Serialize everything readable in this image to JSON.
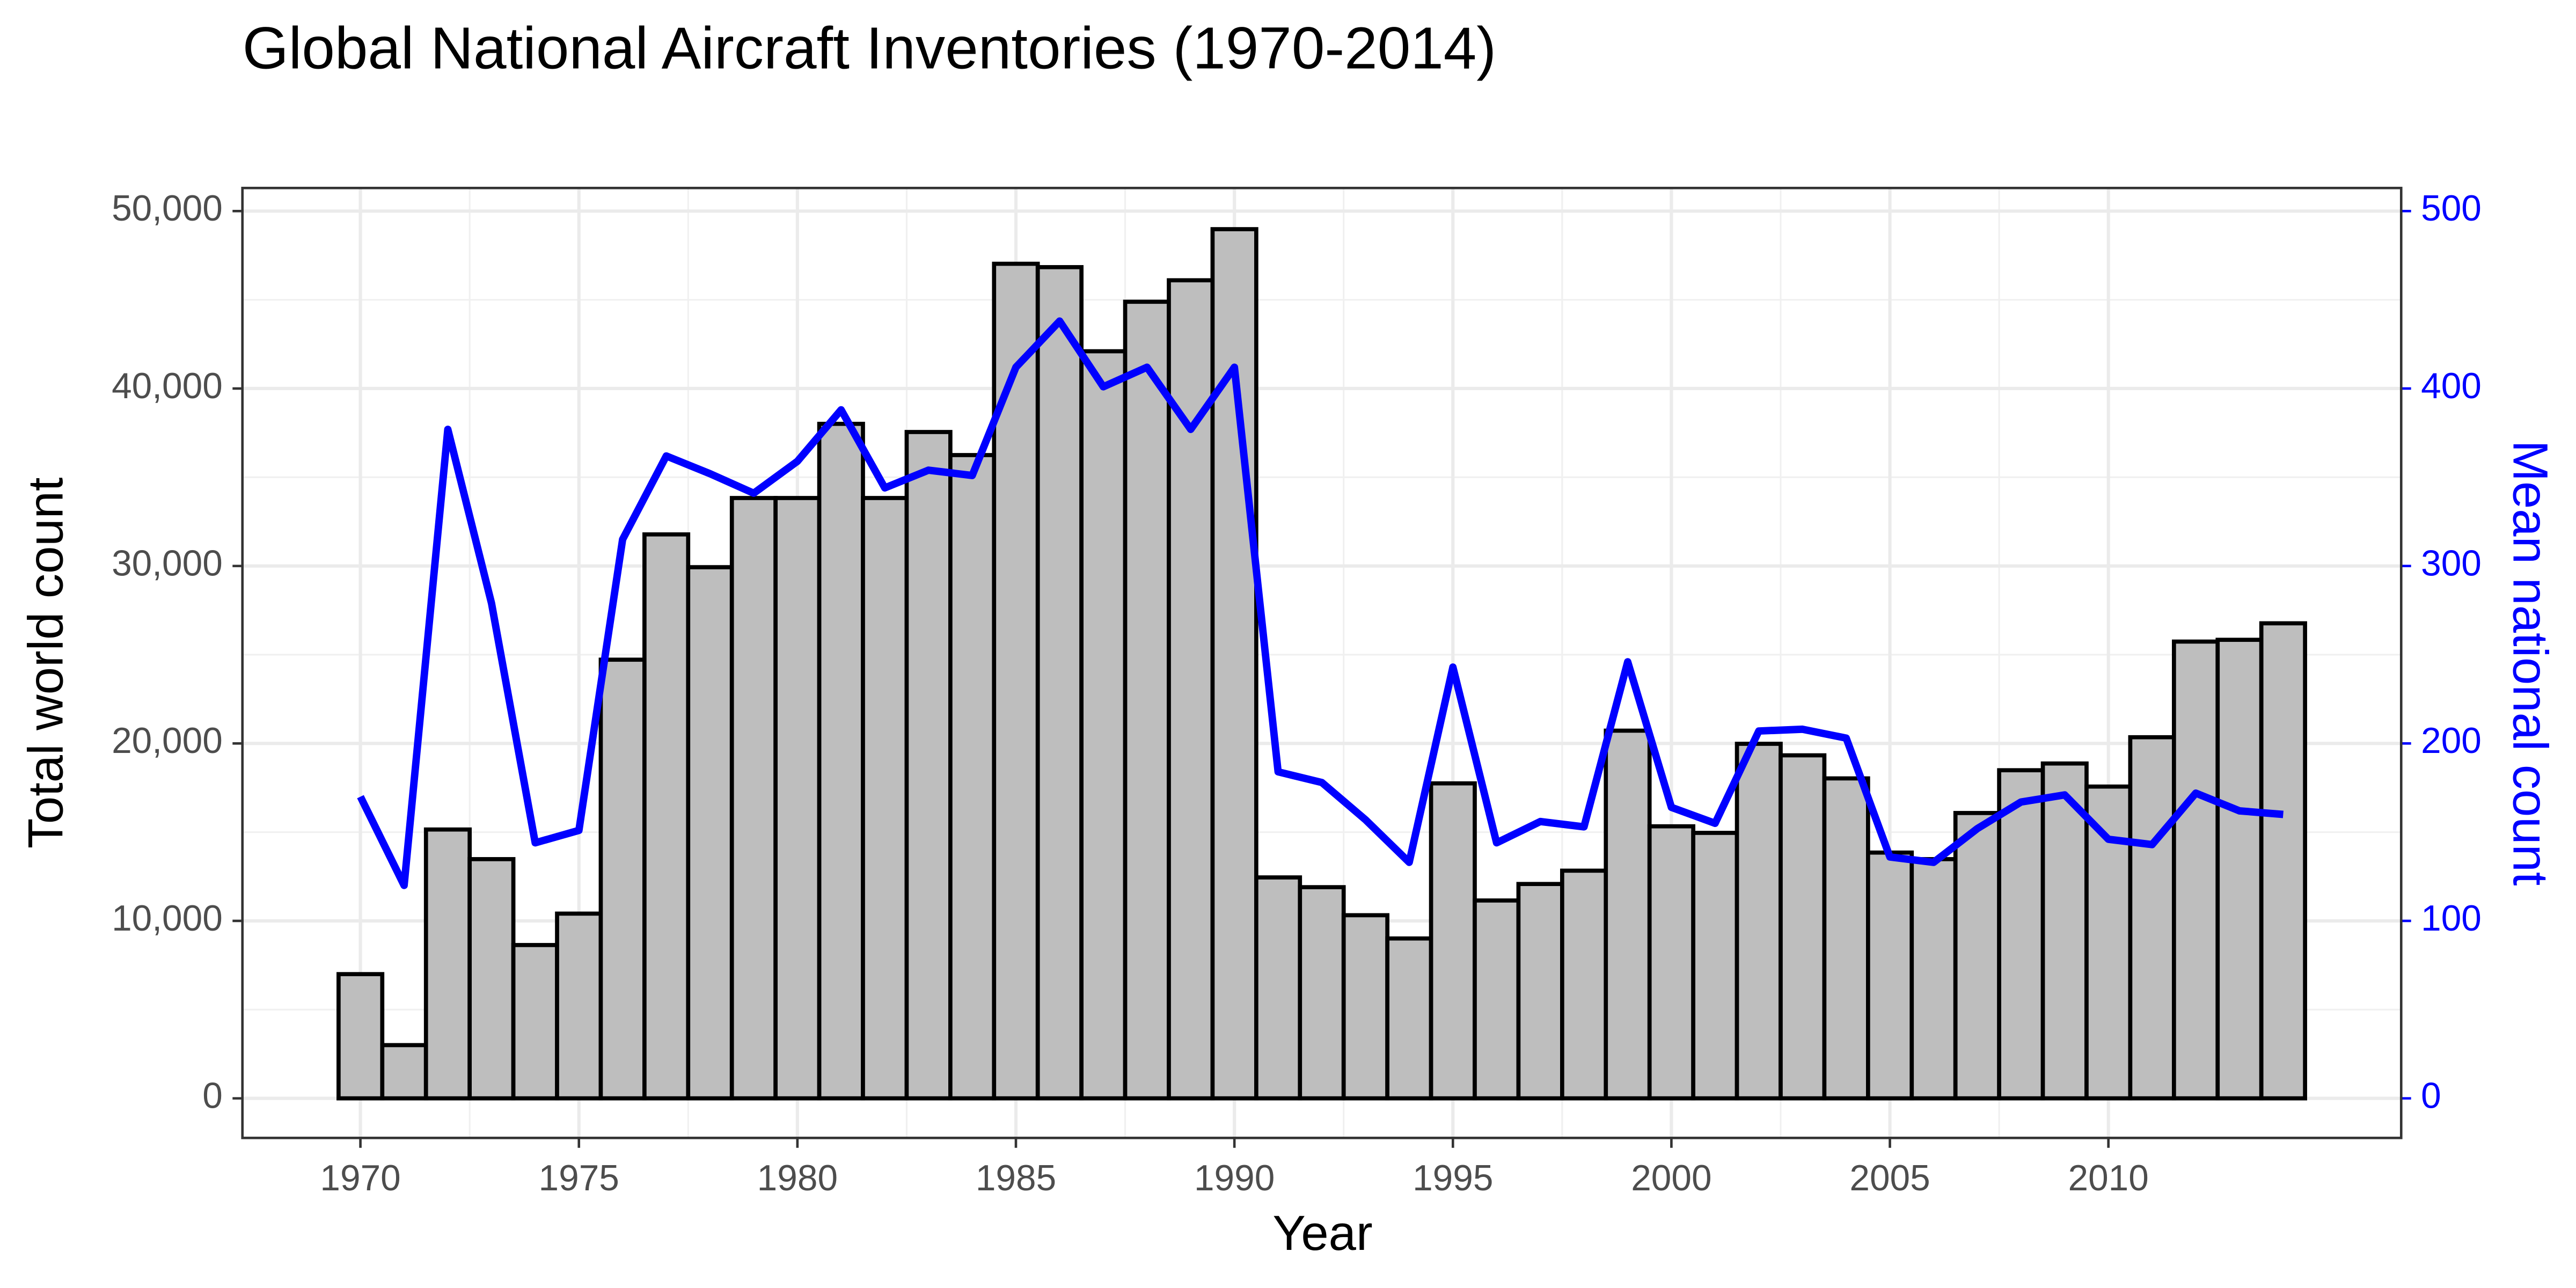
{
  "chart_data": {
    "type": "bar",
    "title": "Global National Aircraft Inventories (1970-2014)",
    "x_label": "Year",
    "y_label": "Total world count",
    "y2_label": "Mean national count",
    "x": [
      1970,
      1971,
      1972,
      1973,
      1974,
      1975,
      1976,
      1977,
      1978,
      1979,
      1980,
      1981,
      1982,
      1983,
      1984,
      1985,
      1986,
      1987,
      1988,
      1989,
      1990,
      1991,
      1992,
      1993,
      1994,
      1995,
      1996,
      1997,
      1998,
      1999,
      2000,
      2001,
      2002,
      2003,
      2004,
      2005,
      2006,
      2007,
      2008,
      2009,
      2010,
      2011,
      2012,
      2013,
      2014
    ],
    "series": [
      {
        "type": "bar",
        "color": "#bebebe",
        "values": [
          7000,
          3000,
          15150,
          13480,
          8640,
          10410,
          24720,
          31780,
          29930,
          33830,
          33830,
          38010,
          33830,
          37550,
          36250,
          47030,
          46840,
          42100,
          44890,
          46100,
          48980,
          12450,
          11900,
          10320,
          9010,
          17750,
          11150,
          12080,
          12830,
          20720,
          15330,
          14960,
          19980,
          19330,
          18030,
          13850,
          13480,
          16080,
          18490,
          18870,
          17570,
          20350,
          25740,
          25840,
          26770
        ]
      },
      {
        "type": "line",
        "axis": "y2",
        "color": "#0000ff",
        "values": [
          170,
          120,
          377,
          279,
          144,
          151,
          315,
          362,
          352,
          341,
          359,
          388,
          344,
          354,
          351,
          412,
          438,
          401,
          412,
          377,
          412,
          184,
          178,
          157,
          133,
          243,
          144,
          156,
          153,
          246,
          164,
          155,
          207,
          208,
          203,
          136,
          133,
          152,
          167,
          171,
          146,
          143,
          172,
          162,
          160
        ]
      }
    ],
    "xlim": [
      1967.3,
      2016.7
    ],
    "xticks": [
      1970,
      1975,
      1980,
      1985,
      1990,
      1995,
      2000,
      2005,
      2010
    ],
    "ylim": [
      -2230,
      51300
    ],
    "yticks": [
      0,
      {
        "value": 10000,
        "label": "10,000"
      },
      {
        "value": 20000,
        "label": "20,000"
      },
      {
        "value": 30000,
        "label": "30,000"
      },
      {
        "value": 40000,
        "label": "40,000"
      },
      {
        "value": 50000,
        "label": "50,000"
      }
    ],
    "y2lim": [
      -22.3,
      513
    ],
    "y2ticks": [
      0,
      100,
      200,
      300,
      400,
      500
    ],
    "grid": true
  }
}
